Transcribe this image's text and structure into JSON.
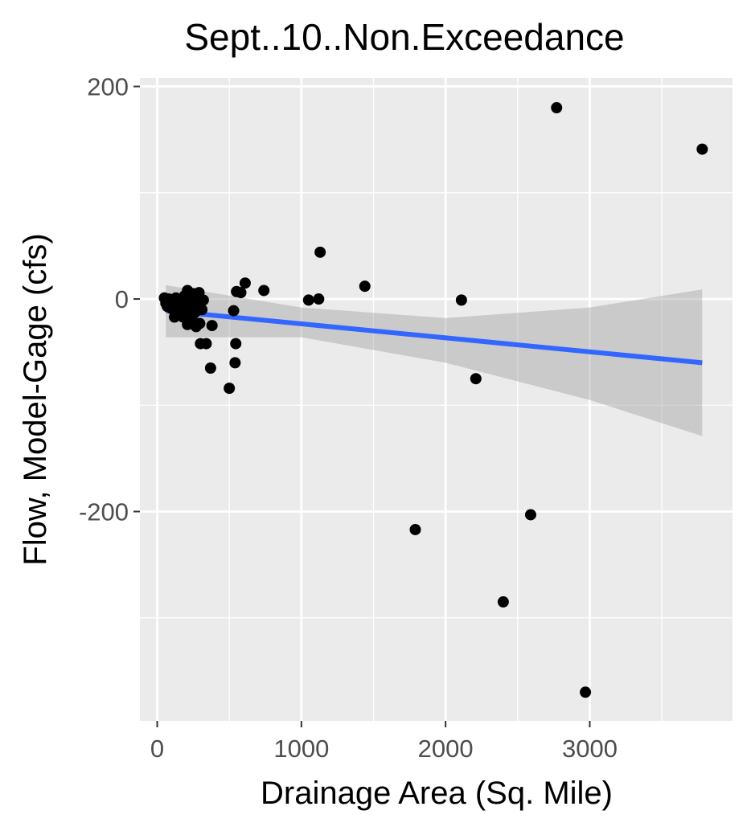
{
  "chart_data": {
    "type": "scatter",
    "title": "Sept..10..Non.Exceedance",
    "xlabel": "Drainage Area (Sq. Mile)",
    "ylabel": "Flow, Model-Gage (cfs)",
    "xlim": [
      -120,
      3990
    ],
    "ylim": [
      -397,
      208
    ],
    "x_ticks": [
      0,
      1000,
      2000,
      3000
    ],
    "x_tick_labels": [
      "0",
      "1000",
      "2000",
      "3000"
    ],
    "x_minor_ticks": [
      500,
      1500,
      2500,
      3500
    ],
    "y_ticks": [
      200,
      0,
      -200
    ],
    "y_tick_labels": [
      "200",
      "0",
      "-200"
    ],
    "y_minor_ticks": [
      100,
      -100,
      -300
    ],
    "grid": true,
    "points": [
      {
        "x": 50,
        "y": 1
      },
      {
        "x": 60,
        "y": -4
      },
      {
        "x": 70,
        "y": -7
      },
      {
        "x": 80,
        "y": 0
      },
      {
        "x": 90,
        "y": -3
      },
      {
        "x": 100,
        "y": -9
      },
      {
        "x": 110,
        "y": -2
      },
      {
        "x": 120,
        "y": -17
      },
      {
        "x": 130,
        "y": 1
      },
      {
        "x": 140,
        "y": -14
      },
      {
        "x": 160,
        "y": -12
      },
      {
        "x": 170,
        "y": -6
      },
      {
        "x": 180,
        "y": -17
      },
      {
        "x": 190,
        "y": 3
      },
      {
        "x": 200,
        "y": -1
      },
      {
        "x": 210,
        "y": 8
      },
      {
        "x": 210,
        "y": -24
      },
      {
        "x": 220,
        "y": -9
      },
      {
        "x": 230,
        "y": -4
      },
      {
        "x": 240,
        "y": -18
      },
      {
        "x": 250,
        "y": 5
      },
      {
        "x": 255,
        "y": -22
      },
      {
        "x": 260,
        "y": -13
      },
      {
        "x": 270,
        "y": -26
      },
      {
        "x": 280,
        "y": 1
      },
      {
        "x": 285,
        "y": -6
      },
      {
        "x": 290,
        "y": 6
      },
      {
        "x": 295,
        "y": -23
      },
      {
        "x": 300,
        "y": -42
      },
      {
        "x": 310,
        "y": -10
      },
      {
        "x": 320,
        "y": -1
      },
      {
        "x": 340,
        "y": -42
      },
      {
        "x": 370,
        "y": -65
      },
      {
        "x": 380,
        "y": -25
      },
      {
        "x": 500,
        "y": -84
      },
      {
        "x": 530,
        "y": -11
      },
      {
        "x": 540,
        "y": -60
      },
      {
        "x": 545,
        "y": -42
      },
      {
        "x": 550,
        "y": 7
      },
      {
        "x": 580,
        "y": 6
      },
      {
        "x": 610,
        "y": 15
      },
      {
        "x": 740,
        "y": 8
      },
      {
        "x": 1050,
        "y": -1
      },
      {
        "x": 1120,
        "y": 0
      },
      {
        "x": 1130,
        "y": 44
      },
      {
        "x": 1440,
        "y": 12
      },
      {
        "x": 1790,
        "y": -217
      },
      {
        "x": 2110,
        "y": -1
      },
      {
        "x": 2210,
        "y": -75
      },
      {
        "x": 2400,
        "y": -285
      },
      {
        "x": 2590,
        "y": -203
      },
      {
        "x": 2770,
        "y": 180
      },
      {
        "x": 2970,
        "y": -370
      },
      {
        "x": 3780,
        "y": 141
      }
    ],
    "trend": {
      "x": [
        60,
        3780
      ],
      "y": [
        -11,
        -60
      ]
    },
    "band": {
      "x": [
        60,
        1000,
        2000,
        3000,
        3780
      ],
      "upper": [
        13,
        -8,
        -18,
        -8,
        9
      ],
      "lower": [
        -36,
        -36,
        -60,
        -95,
        -129
      ]
    },
    "colors": {
      "panel": "#ebebeb",
      "grid": "#ffffff",
      "points": "#000000",
      "trend": "#3366ff",
      "band": "#999999",
      "tick": "#333333"
    }
  }
}
